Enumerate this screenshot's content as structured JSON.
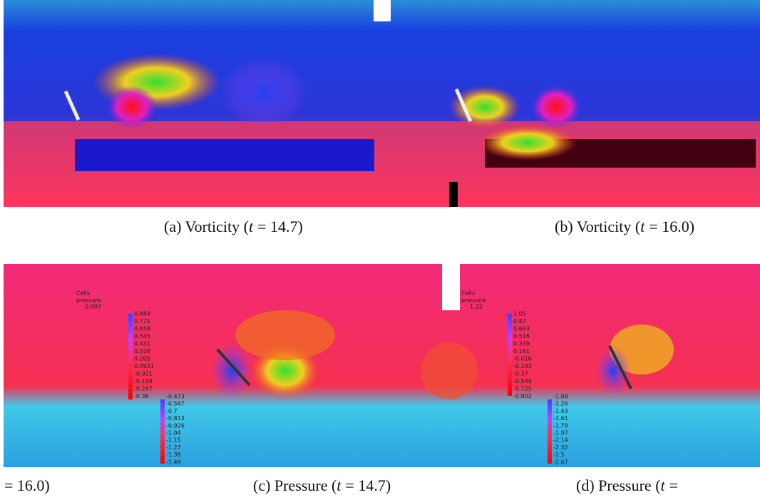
{
  "panels": [
    {
      "label": "(a) Vorticity (",
      "var": "t",
      "rest": "= 14.7)"
    },
    {
      "label": "(b) Vorticity (",
      "var": "t",
      "rest": "= 16.0)"
    },
    {
      "label": "",
      "var": "",
      "rest": "= 16.0)"
    },
    {
      "label": "(c) Pressure (",
      "var": "t",
      "rest": "= 14.7)"
    },
    {
      "label": "(d) Pressure (",
      "var": "t",
      "rest": "="
    }
  ],
  "colorbars": [
    {
      "title": "Cells",
      "subtitle": "pressure",
      "top": "0.997",
      "labels": [
        "0.884",
        "0.771",
        "0.658",
        "0.545",
        "0.431",
        "0.318",
        "0.205",
        "0.0921",
        "-0.021",
        "-0.134",
        "-0.247",
        "-0.36",
        "-0.473",
        "-0.587",
        "-0.7",
        "-0.813",
        "-0.926",
        "-1.04",
        "-1.15",
        "-1.27",
        "-1.38",
        "-1.49"
      ]
    },
    {
      "title": "Cells",
      "subtitle": "pressure",
      "top": "1.22",
      "labels": [
        "1.05",
        "0.87",
        "0.693",
        "0.516",
        "0.339",
        "0.161",
        "-0.016",
        "-0.193",
        "-0.37",
        "-0.548",
        "-0.725",
        "-0.902",
        "-1.08",
        "-1.26",
        "-1.43",
        "-1.61",
        "-1.79",
        "-1.97",
        "-2.14",
        "-2.32",
        "-2.5",
        "-2.67"
      ]
    }
  ]
}
